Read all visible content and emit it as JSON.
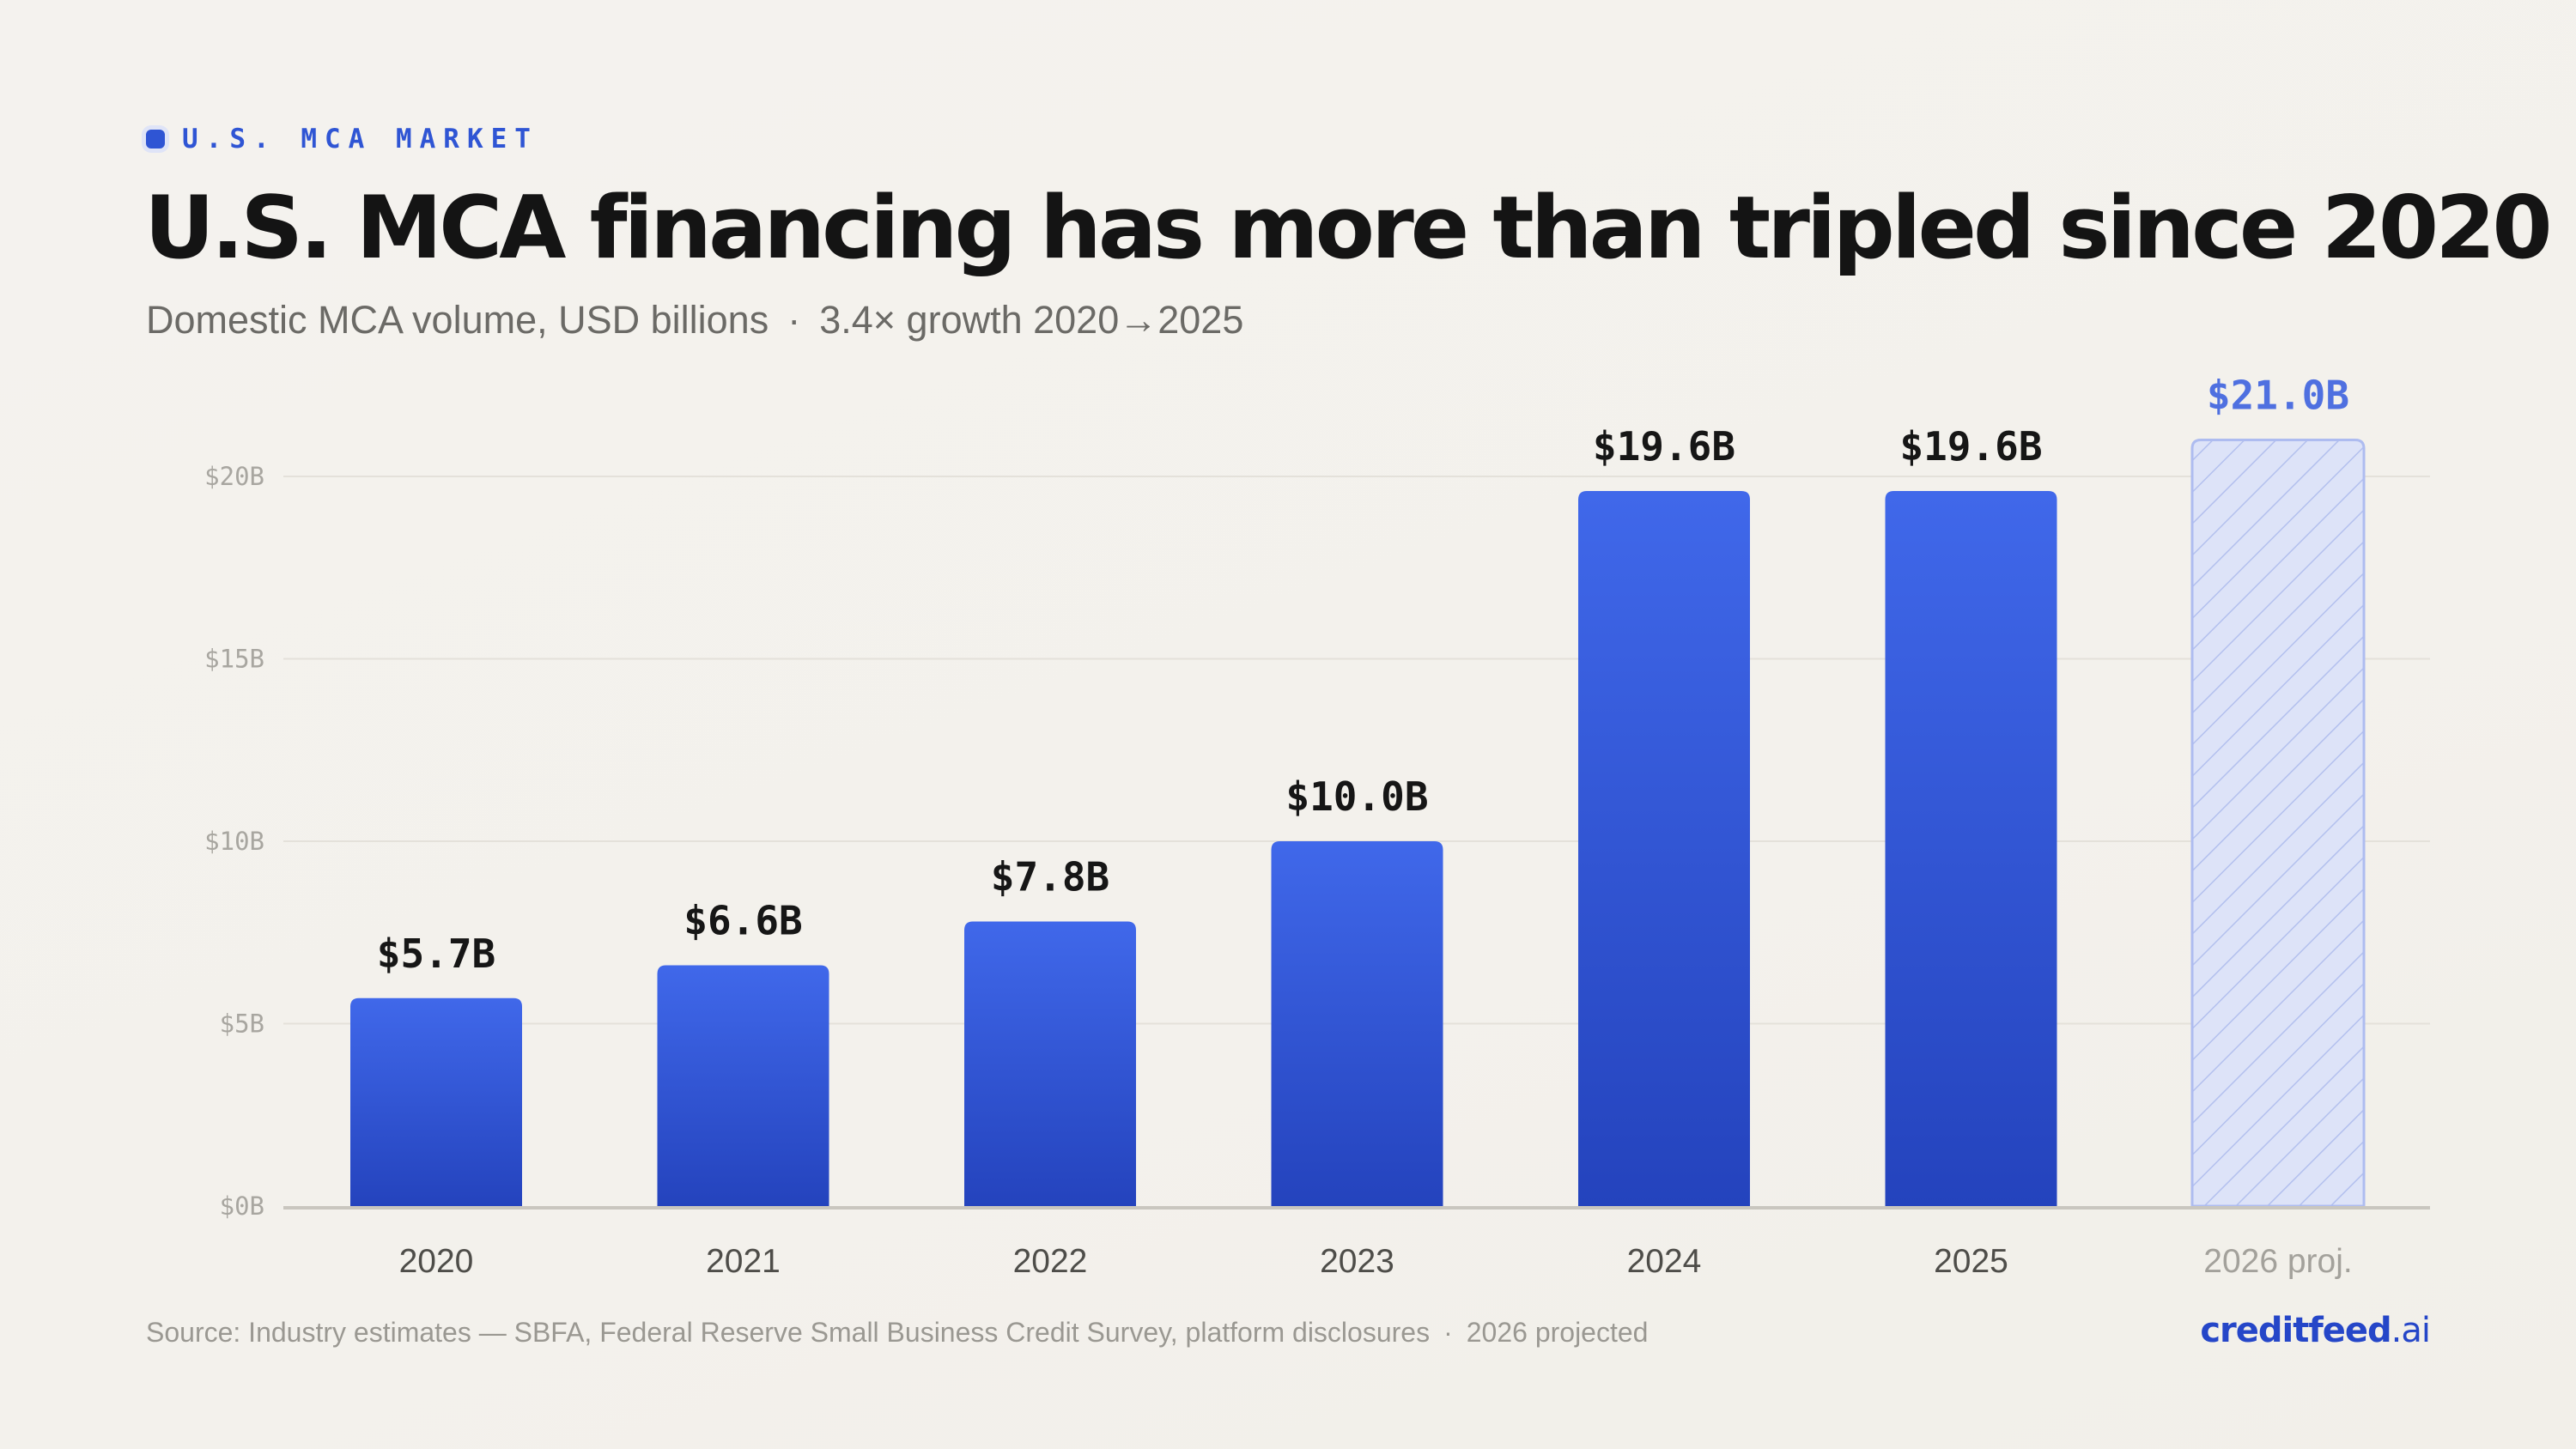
{
  "eyebrow": "U.S. MCA MARKET",
  "title": "U.S. MCA financing has more than tripled since 2020",
  "subtitle": {
    "description": "Domestic MCA volume, USD billions",
    "separator": "·",
    "growth": "3.4× growth 2020→2025"
  },
  "footer": {
    "source": "Source: Industry estimates — SBFA, Federal Reserve Small Business Credit Survey, platform disclosures",
    "separator": "·",
    "note": "2026 projected"
  },
  "brand": {
    "name": "creditfeed",
    "tld": ".ai"
  },
  "colors": {
    "bar_top": "#4068ea",
    "bar_bottom": "#2443bd",
    "projected_fill": "#dde3f8",
    "projected_stripe": "#b3c0ee",
    "projected_border": "#aebcf0",
    "projected_label": "#4f70e0",
    "grid": "#e4e1da",
    "axis": "#c9c6bf"
  },
  "chart_data": {
    "type": "bar",
    "categories": [
      "2020",
      "2021",
      "2022",
      "2023",
      "2024",
      "2025",
      "2026 proj."
    ],
    "values": [
      5.7,
      6.6,
      7.8,
      10.0,
      19.6,
      19.6,
      21.0
    ],
    "data_labels": [
      "$5.7B",
      "$6.6B",
      "$7.8B",
      "$10.0B",
      "$19.6B",
      "$19.6B",
      "$21.0B"
    ],
    "projected": [
      false,
      false,
      false,
      false,
      false,
      false,
      true
    ],
    "yticks": [
      0,
      5,
      10,
      15,
      20
    ],
    "ytick_labels": [
      "$0B",
      "$5B",
      "$10B",
      "$15B",
      "$20B"
    ],
    "ylim": [
      0,
      20
    ],
    "grid": true,
    "legend": "none"
  }
}
